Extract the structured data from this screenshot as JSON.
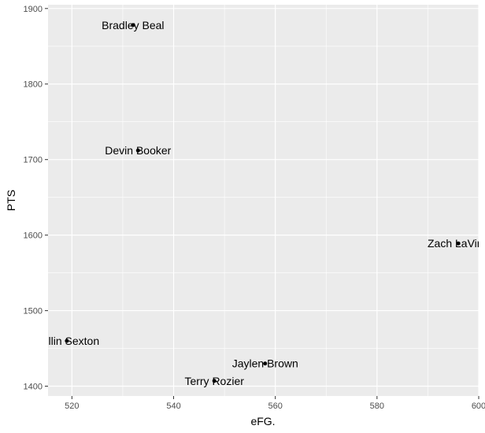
{
  "chart_data": {
    "type": "scatter",
    "xlabel": "eFG.",
    "ylabel": "PTS",
    "xlim": [
      515.3,
      600
    ],
    "ylim": [
      1387,
      1905
    ],
    "x_ticks": [
      520,
      540,
      560,
      580,
      600
    ],
    "y_ticks": [
      1400,
      1500,
      1600,
      1700,
      1800,
      1900
    ],
    "grid": true,
    "colors": {
      "panel_background": "#ebebeb",
      "grid_line": "#ffffff",
      "point": "#000000",
      "tick_label": "#4d4d4d"
    },
    "points": [
      {
        "label": "Bradley Beal",
        "x": 532,
        "y": 1878
      },
      {
        "label": "Devin Booker",
        "x": 533,
        "y": 1712
      },
      {
        "label": "Zach LaVine",
        "x": 596,
        "y": 1589
      },
      {
        "label": "Collin Sexton",
        "x": 519,
        "y": 1460
      },
      {
        "label": "Jaylen Brown",
        "x": 558,
        "y": 1430
      },
      {
        "label": "Terry Rozier",
        "x": 548,
        "y": 1407
      }
    ]
  }
}
